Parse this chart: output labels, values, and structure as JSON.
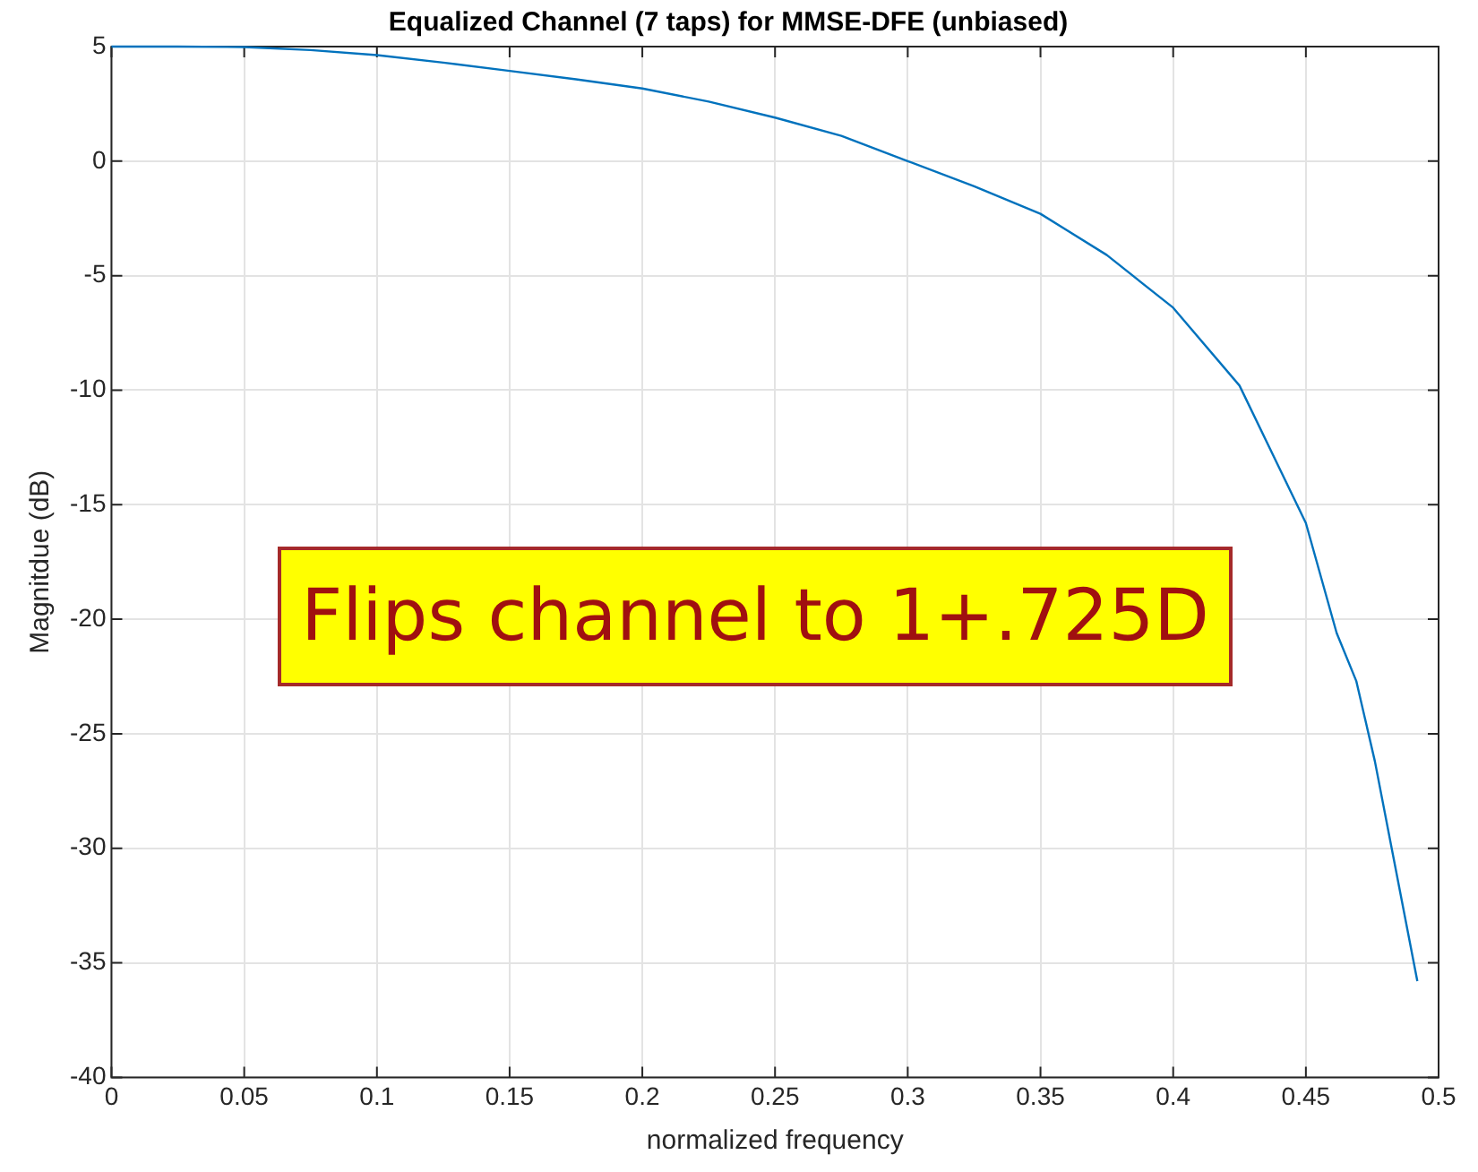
{
  "chart_data": {
    "type": "line",
    "title": "Equalized Channel (7 taps) for MMSE-DFE (unbiased)",
    "xlabel": "normalized frequency",
    "ylabel": "Magnitdue (dB)",
    "x": [
      0,
      0.025,
      0.05,
      0.075,
      0.1,
      0.125,
      0.15,
      0.175,
      0.2,
      0.225,
      0.25,
      0.275,
      0.3,
      0.325,
      0.35,
      0.375,
      0.4,
      0.425,
      0.45,
      0.4616,
      0.469,
      0.476,
      0.483,
      0.492
    ],
    "series": [
      {
        "color": "#0072bd",
        "values": [
          5,
          5,
          4.98,
          4.85,
          4.63,
          4.3,
          3.94,
          3.57,
          3.17,
          2.6,
          1.9,
          1.1,
          0,
          -1.1,
          -2.3,
          -4.1,
          -6.4,
          -9.8,
          -15.8,
          -20.6,
          -22.7,
          -26.2,
          -30.4,
          -35.8
        ]
      }
    ],
    "xlim": [
      0,
      0.5
    ],
    "xticks": [
      0,
      0.05,
      0.1,
      0.15,
      0.2,
      0.25,
      0.3,
      0.35,
      0.4,
      0.45,
      0.5
    ],
    "ylim": [
      -40,
      5
    ],
    "yticks": [
      -40,
      -35,
      -30,
      -25,
      -20,
      -15,
      -10,
      -5,
      0,
      5
    ],
    "grid": true,
    "legend": false,
    "annotations": [
      "Flips channel to 1+.725D"
    ]
  }
}
